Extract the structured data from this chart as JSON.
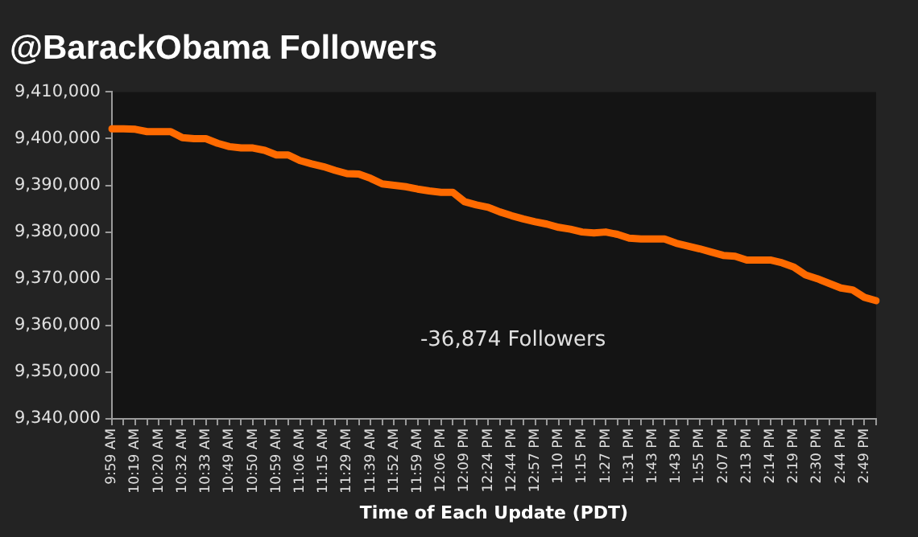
{
  "chart_data": {
    "type": "line",
    "title": "@BarackObama Followers",
    "xlabel": "Time of Each Update (PDT)",
    "categories": [
      "9:59 AM",
      null,
      "10:19 AM",
      null,
      "10:20 AM",
      null,
      "10:32 AM",
      null,
      "10:33 AM",
      null,
      "10:49 AM",
      null,
      "10:50 AM",
      null,
      "10:59 AM",
      null,
      "11:06 AM",
      null,
      "11:15 AM",
      null,
      "11:29 AM",
      null,
      "11:39 AM",
      null,
      "11:52 AM",
      null,
      "11:59 AM",
      null,
      "12:06 PM",
      null,
      "12:09 PM",
      null,
      "12:24 PM",
      null,
      "12:44 PM",
      null,
      "12:57 PM",
      null,
      "1:10 PM",
      null,
      "1:15 PM",
      null,
      "1:27 PM",
      null,
      "1:31 PM",
      null,
      "1:43 PM",
      null,
      "1:43 PM",
      null,
      "1:55 PM",
      null,
      "2:07 PM",
      null,
      "2:13 PM",
      null,
      "2:14 PM",
      null,
      "2:19 PM",
      null,
      "2:30 PM",
      null,
      "2:44 PM",
      null,
      "2:49 PM",
      null
    ],
    "series": [
      {
        "color": "#ff6a00",
        "values": [
          9402100,
          9402100,
          9402000,
          9401500,
          9401500,
          9401500,
          9400200,
          9400000,
          9400000,
          9399000,
          9398300,
          9398000,
          9398000,
          9397500,
          9396500,
          9396500,
          9395300,
          9394600,
          9394000,
          9393200,
          9392500,
          9392400,
          9391500,
          9390300,
          9390000,
          9389700,
          9389200,
          9388800,
          9388500,
          9388500,
          9386500,
          9385800,
          9385300,
          9384300,
          9383500,
          9382800,
          9382200,
          9381700,
          9381000,
          9380600,
          9380000,
          9379800,
          9380000,
          9379500,
          9378700,
          9378500,
          9378500,
          9378500,
          9377600,
          9377000,
          9376400,
          9375700,
          9375000,
          9374800,
          9374000,
          9374000,
          9374000,
          9373400,
          9372500,
          9370800,
          9370000,
          9369000,
          9368000,
          9367600,
          9366000,
          9365300
        ]
      }
    ],
    "ylim": [
      9340000,
      9410000
    ],
    "yticks": [
      {
        "value": 9340000,
        "label": "9,340,000"
      },
      {
        "value": 9350000,
        "label": "9,350,000"
      },
      {
        "value": 9360000,
        "label": "9,360,000"
      },
      {
        "value": 9370000,
        "label": "9,370,000"
      },
      {
        "value": 9380000,
        "label": "9,380,000"
      },
      {
        "value": 9390000,
        "label": "9,390,000"
      },
      {
        "value": 9400000,
        "label": "9,400,000"
      },
      {
        "value": 9410000,
        "label": "9,410,000"
      }
    ],
    "grid": false,
    "legend": false,
    "marker": "none",
    "line_style": "solid",
    "annotations": [
      "-36,874 Followers"
    ]
  }
}
